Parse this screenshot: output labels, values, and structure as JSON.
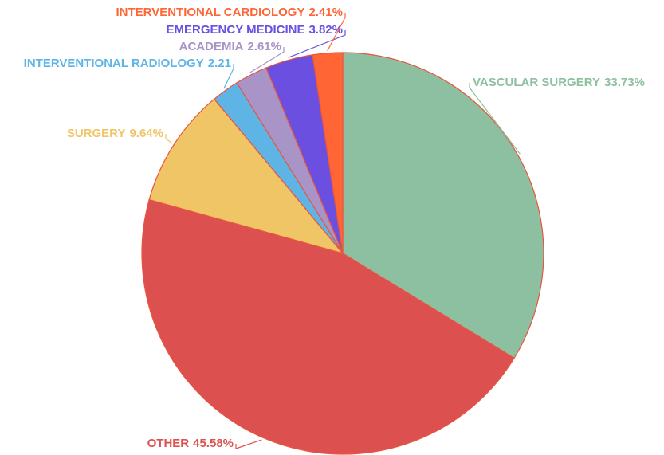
{
  "chart_data": {
    "type": "pie",
    "categories": [
      "VASCULAR SURGERY",
      "OTHER",
      "SURGERY",
      "INTERVENTIONAL RADIOLOGY",
      "ACADEMIA",
      "EMERGENCY MEDICINE",
      "INTERVENTIONAL CARDIOLOGY"
    ],
    "values": [
      33.73,
      45.58,
      9.64,
      2.21,
      2.61,
      3.82,
      2.41
    ],
    "value_labels": [
      "33.73%",
      "45.58%",
      "9.64%",
      "2.21",
      "2.61%",
      "3.82%",
      "2.41%"
    ],
    "colors": [
      "#8dc0a0",
      "#dc5050",
      "#f0c566",
      "#5fb4e6",
      "#a994c8",
      "#6a4fe0",
      "#ff6535"
    ]
  }
}
